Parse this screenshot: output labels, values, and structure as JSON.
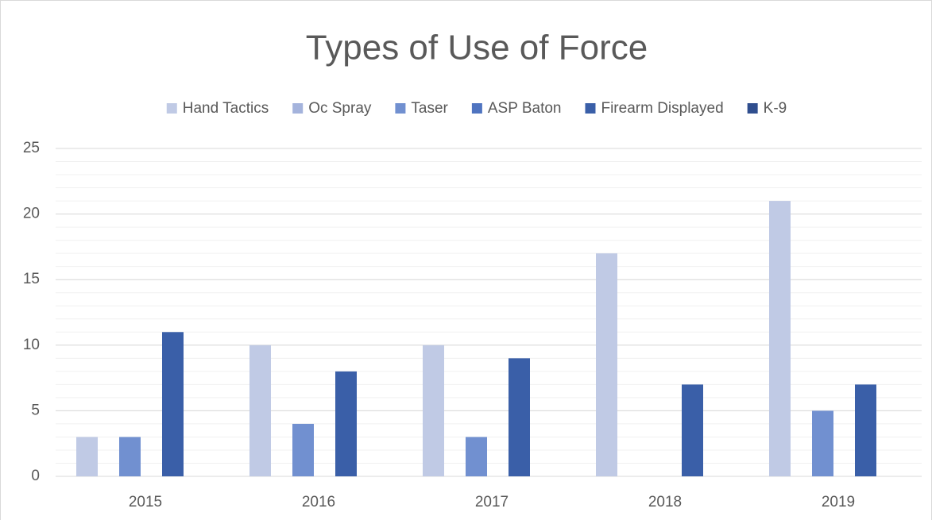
{
  "chart_data": {
    "type": "bar",
    "title": "Types of Use of Force",
    "categories": [
      "2015",
      "2016",
      "2017",
      "2018",
      "2019"
    ],
    "series": [
      {
        "name": "Hand Tactics",
        "color": "#c0cae5",
        "values": [
          3,
          10,
          10,
          17,
          21
        ]
      },
      {
        "name": "Oc Spray",
        "color": "#a4b3dc",
        "values": [
          0,
          0,
          0,
          0,
          0
        ]
      },
      {
        "name": "Taser",
        "color": "#7190d0",
        "values": [
          3,
          4,
          3,
          0,
          5
        ]
      },
      {
        "name": "ASP Baton",
        "color": "#4f74c0",
        "values": [
          0,
          0,
          0,
          0,
          0
        ]
      },
      {
        "name": "Firearm Displayed",
        "color": "#3a5fa8",
        "values": [
          11,
          8,
          9,
          7,
          7
        ]
      },
      {
        "name": "K-9",
        "color": "#2f4e8e",
        "values": [
          0,
          0,
          0,
          0,
          0
        ]
      }
    ],
    "ylim": [
      0,
      25
    ],
    "yticks": [
      0,
      5,
      10,
      15,
      20,
      25
    ],
    "grid": true,
    "minor_grid": 1,
    "legend": "top"
  }
}
